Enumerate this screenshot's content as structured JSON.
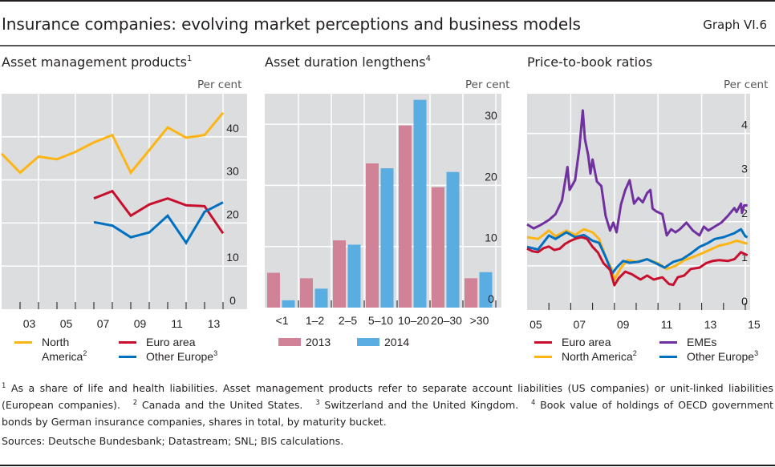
{
  "header": {
    "title": "Insurance companies: evolving market perceptions and business models",
    "graph_id": "Graph VI.6"
  },
  "colors": {
    "plot_bg": "#dcdddf",
    "grid": "#ffffff",
    "north_america": "#fdb515",
    "euro_area": "#c8102e",
    "other_europe": "#0070c0",
    "emes": "#7030a0",
    "bar_2013": "#d08296",
    "bar_2014": "#5aade0"
  },
  "chart_data": [
    {
      "id": "asset-management",
      "type": "line",
      "title": "Asset management products",
      "title_footnote": "1",
      "ylabel": "Per cent",
      "ylim": [
        0,
        50
      ],
      "yticks": [
        0,
        10,
        20,
        30,
        40
      ],
      "xlim": [
        2001,
        2013.4
      ],
      "xtick_labels": [
        "03",
        "05",
        "07",
        "09",
        "11",
        "13"
      ],
      "xtick_label_years": [
        2003,
        2005,
        2007,
        2009,
        2011,
        2013
      ],
      "grid": true,
      "legend_position": "bottom",
      "series": [
        {
          "name": "North America",
          "footnote": "2",
          "color_key": "north_america",
          "x": [
            2001,
            2002,
            2003,
            2004,
            2005,
            2006,
            2007,
            2008,
            2009,
            2010,
            2011,
            2012,
            2013
          ],
          "values": [
            36.1,
            31.7,
            35.4,
            34.8,
            36.5,
            38.7,
            40.4,
            31.7,
            36.9,
            42.2,
            39.8,
            40.4,
            45.6
          ]
        },
        {
          "name": "Euro area",
          "footnote": "",
          "color_key": "euro_area",
          "x": [
            2006,
            2007,
            2008,
            2009,
            2010,
            2011,
            2012,
            2013
          ],
          "values": [
            25.7,
            27.4,
            21.7,
            24.3,
            25.7,
            24.1,
            23.9,
            17.6
          ]
        },
        {
          "name": "Other Europe",
          "footnote": "3",
          "color_key": "other_europe",
          "x": [
            2006,
            2007,
            2008,
            2009,
            2010,
            2011,
            2012,
            2013
          ],
          "values": [
            20.2,
            19.4,
            16.7,
            17.8,
            21.7,
            15.4,
            22.6,
            24.8
          ]
        }
      ]
    },
    {
      "id": "asset-duration",
      "type": "bar",
      "title": "Asset duration lengthens",
      "title_footnote": "4",
      "ylabel": "Per cent",
      "ylim": [
        0,
        35
      ],
      "yticks": [
        0,
        10,
        20,
        30
      ],
      "categories": [
        "<1",
        "1–2",
        "2–5",
        "5–10",
        "10–20",
        "20–30",
        ">30"
      ],
      "grid": true,
      "legend_position": "bottom",
      "series": [
        {
          "name": "2013",
          "color_key": "bar_2013",
          "values": [
            5.7,
            4.8,
            11.0,
            23.6,
            29.8,
            19.7,
            4.8
          ]
        },
        {
          "name": "2014",
          "color_key": "bar_2014",
          "values": [
            1.2,
            3.1,
            10.3,
            22.8,
            34.0,
            22.2,
            5.8
          ]
        }
      ]
    },
    {
      "id": "price-to-book",
      "type": "line",
      "title": "Price-to-book ratios",
      "title_footnote": "",
      "ylabel": "Per cent",
      "ylim": [
        0,
        4.9
      ],
      "yticks": [
        0,
        1,
        2,
        3,
        4
      ],
      "xlim": [
        2005,
        2015.2
      ],
      "xtick_labels": [
        "05",
        "07",
        "09",
        "11",
        "13",
        "15"
      ],
      "xtick_label_years": [
        2005,
        2007,
        2009,
        2011,
        2013,
        2015
      ],
      "grid": true,
      "legend_position": "bottom",
      "series": [
        {
          "name": "Euro area",
          "footnote": "",
          "color_key": "euro_area",
          "x": [
            2005.0,
            2005.25,
            2005.5,
            2005.75,
            2006.0,
            2006.25,
            2006.5,
            2006.75,
            2007.0,
            2007.25,
            2007.5,
            2007.75,
            2008.0,
            2008.25,
            2008.5,
            2008.8,
            2009.0,
            2009.2,
            2009.5,
            2009.8,
            2010.2,
            2010.5,
            2010.8,
            2011.2,
            2011.5,
            2011.7,
            2011.9,
            2012.2,
            2012.5,
            2012.9,
            2013.2,
            2013.5,
            2013.8,
            2014.2,
            2014.5,
            2014.8,
            2015.1
          ],
          "values": [
            1.39,
            1.33,
            1.31,
            1.4,
            1.44,
            1.36,
            1.39,
            1.5,
            1.57,
            1.62,
            1.65,
            1.61,
            1.43,
            1.3,
            1.06,
            0.91,
            0.56,
            0.72,
            0.87,
            0.81,
            0.69,
            0.78,
            0.69,
            0.74,
            0.59,
            0.57,
            0.74,
            0.78,
            0.93,
            0.96,
            1.06,
            1.11,
            1.13,
            1.11,
            1.15,
            1.31,
            1.24
          ]
        },
        {
          "name": "North America",
          "footnote": "2",
          "color_key": "north_america",
          "x": [
            2005.0,
            2005.5,
            2006.0,
            2006.3,
            2006.8,
            2007.2,
            2007.6,
            2008.0,
            2008.3,
            2008.6,
            2008.9,
            2009.0,
            2009.3,
            2009.6,
            2010.0,
            2010.5,
            2011.0,
            2011.4,
            2011.8,
            2012.2,
            2012.6,
            2013.0,
            2013.5,
            2013.8,
            2014.2,
            2014.6,
            2015.1
          ],
          "values": [
            1.65,
            1.61,
            1.8,
            1.67,
            1.8,
            1.7,
            1.83,
            1.76,
            1.61,
            1.2,
            0.91,
            0.69,
            0.96,
            1.13,
            1.09,
            1.15,
            1.06,
            0.93,
            1.0,
            1.13,
            1.2,
            1.28,
            1.39,
            1.46,
            1.5,
            1.57,
            1.5
          ]
        },
        {
          "name": "EMEs",
          "footnote": "",
          "color_key": "emes",
          "x": [
            2005.0,
            2005.3,
            2005.6,
            2006.0,
            2006.3,
            2006.6,
            2006.85,
            2006.95,
            2007.2,
            2007.4,
            2007.55,
            2007.65,
            2007.8,
            2007.9,
            2008.0,
            2008.2,
            2008.4,
            2008.6,
            2008.8,
            2008.95,
            2009.1,
            2009.3,
            2009.5,
            2009.7,
            2009.9,
            2010.1,
            2010.3,
            2010.5,
            2010.65,
            2010.75,
            2010.9,
            2011.2,
            2011.4,
            2011.6,
            2011.8,
            2012.0,
            2012.3,
            2012.6,
            2012.9,
            2013.1,
            2013.3,
            2013.6,
            2013.9,
            2014.2,
            2014.5,
            2014.6,
            2014.8,
            2014.85,
            2014.95,
            2015.1
          ],
          "values": [
            1.94,
            1.85,
            1.92,
            2.04,
            2.17,
            2.48,
            3.24,
            2.72,
            2.94,
            3.69,
            4.52,
            3.87,
            3.5,
            3.09,
            3.41,
            2.91,
            2.81,
            2.13,
            1.8,
            1.98,
            1.76,
            2.39,
            2.72,
            2.94,
            2.41,
            2.54,
            2.44,
            2.65,
            2.72,
            2.3,
            2.24,
            2.17,
            1.69,
            1.83,
            1.76,
            1.83,
            1.98,
            1.8,
            1.69,
            1.89,
            1.8,
            1.89,
            1.98,
            2.13,
            2.31,
            2.22,
            2.41,
            2.2,
            2.37,
            2.37
          ]
        },
        {
          "name": "Other Europe",
          "footnote": "3",
          "color_key": "other_europe",
          "x": [
            2005.0,
            2005.5,
            2006.0,
            2006.3,
            2006.8,
            2007.2,
            2007.6,
            2008.0,
            2008.3,
            2008.6,
            2008.9,
            2009.1,
            2009.4,
            2009.7,
            2010.1,
            2010.5,
            2010.9,
            2011.3,
            2011.7,
            2012.1,
            2012.5,
            2012.9,
            2013.3,
            2013.6,
            2014.0,
            2014.5,
            2014.8,
            2015.0,
            2015.1
          ],
          "values": [
            1.43,
            1.37,
            1.69,
            1.61,
            1.76,
            1.65,
            1.7,
            1.57,
            1.52,
            1.2,
            0.83,
            0.96,
            1.11,
            1.07,
            1.09,
            1.15,
            1.06,
            0.96,
            1.09,
            1.15,
            1.28,
            1.43,
            1.52,
            1.61,
            1.65,
            1.74,
            1.83,
            1.67,
            1.65
          ]
        }
      ]
    }
  ],
  "legends": {
    "chart1": [
      {
        "line1": "North",
        "line2": "America",
        "sup": "2",
        "color_key": "north_america"
      },
      {
        "line1": "Euro area",
        "sup": "",
        "color_key": "euro_area"
      },
      {
        "line1": "Other Europe",
        "sup": "3",
        "color_key": "other_europe"
      }
    ],
    "chart2": [
      {
        "label": "2013",
        "color_key": "bar_2013"
      },
      {
        "label": "2014",
        "color_key": "bar_2014"
      }
    ],
    "chart3": [
      {
        "label": "Euro area",
        "sup": "",
        "color_key": "euro_area"
      },
      {
        "label": "EMEs",
        "sup": "",
        "color_key": "emes"
      },
      {
        "label": "North America",
        "sup": "2",
        "color_key": "north_america"
      },
      {
        "label": "Other Europe",
        "sup": "3",
        "color_key": "other_europe"
      }
    ]
  },
  "footnotes": [
    {
      "num": "1",
      "text": "As a share of life and health liabilities. Asset management products refer to separate account liabilities (US companies) or unit-linked liabilities (European companies)."
    },
    {
      "num": "2",
      "text": "Canada and the United States."
    },
    {
      "num": "3",
      "text": "Switzerland and the United Kingdom."
    },
    {
      "num": "4",
      "text": "Book value of holdings of OECD government bonds by German insurance companies, shares in total, by maturity bucket."
    }
  ],
  "sources": "Sources: Deutsche Bundesbank; Datastream; SNL; BIS calculations."
}
